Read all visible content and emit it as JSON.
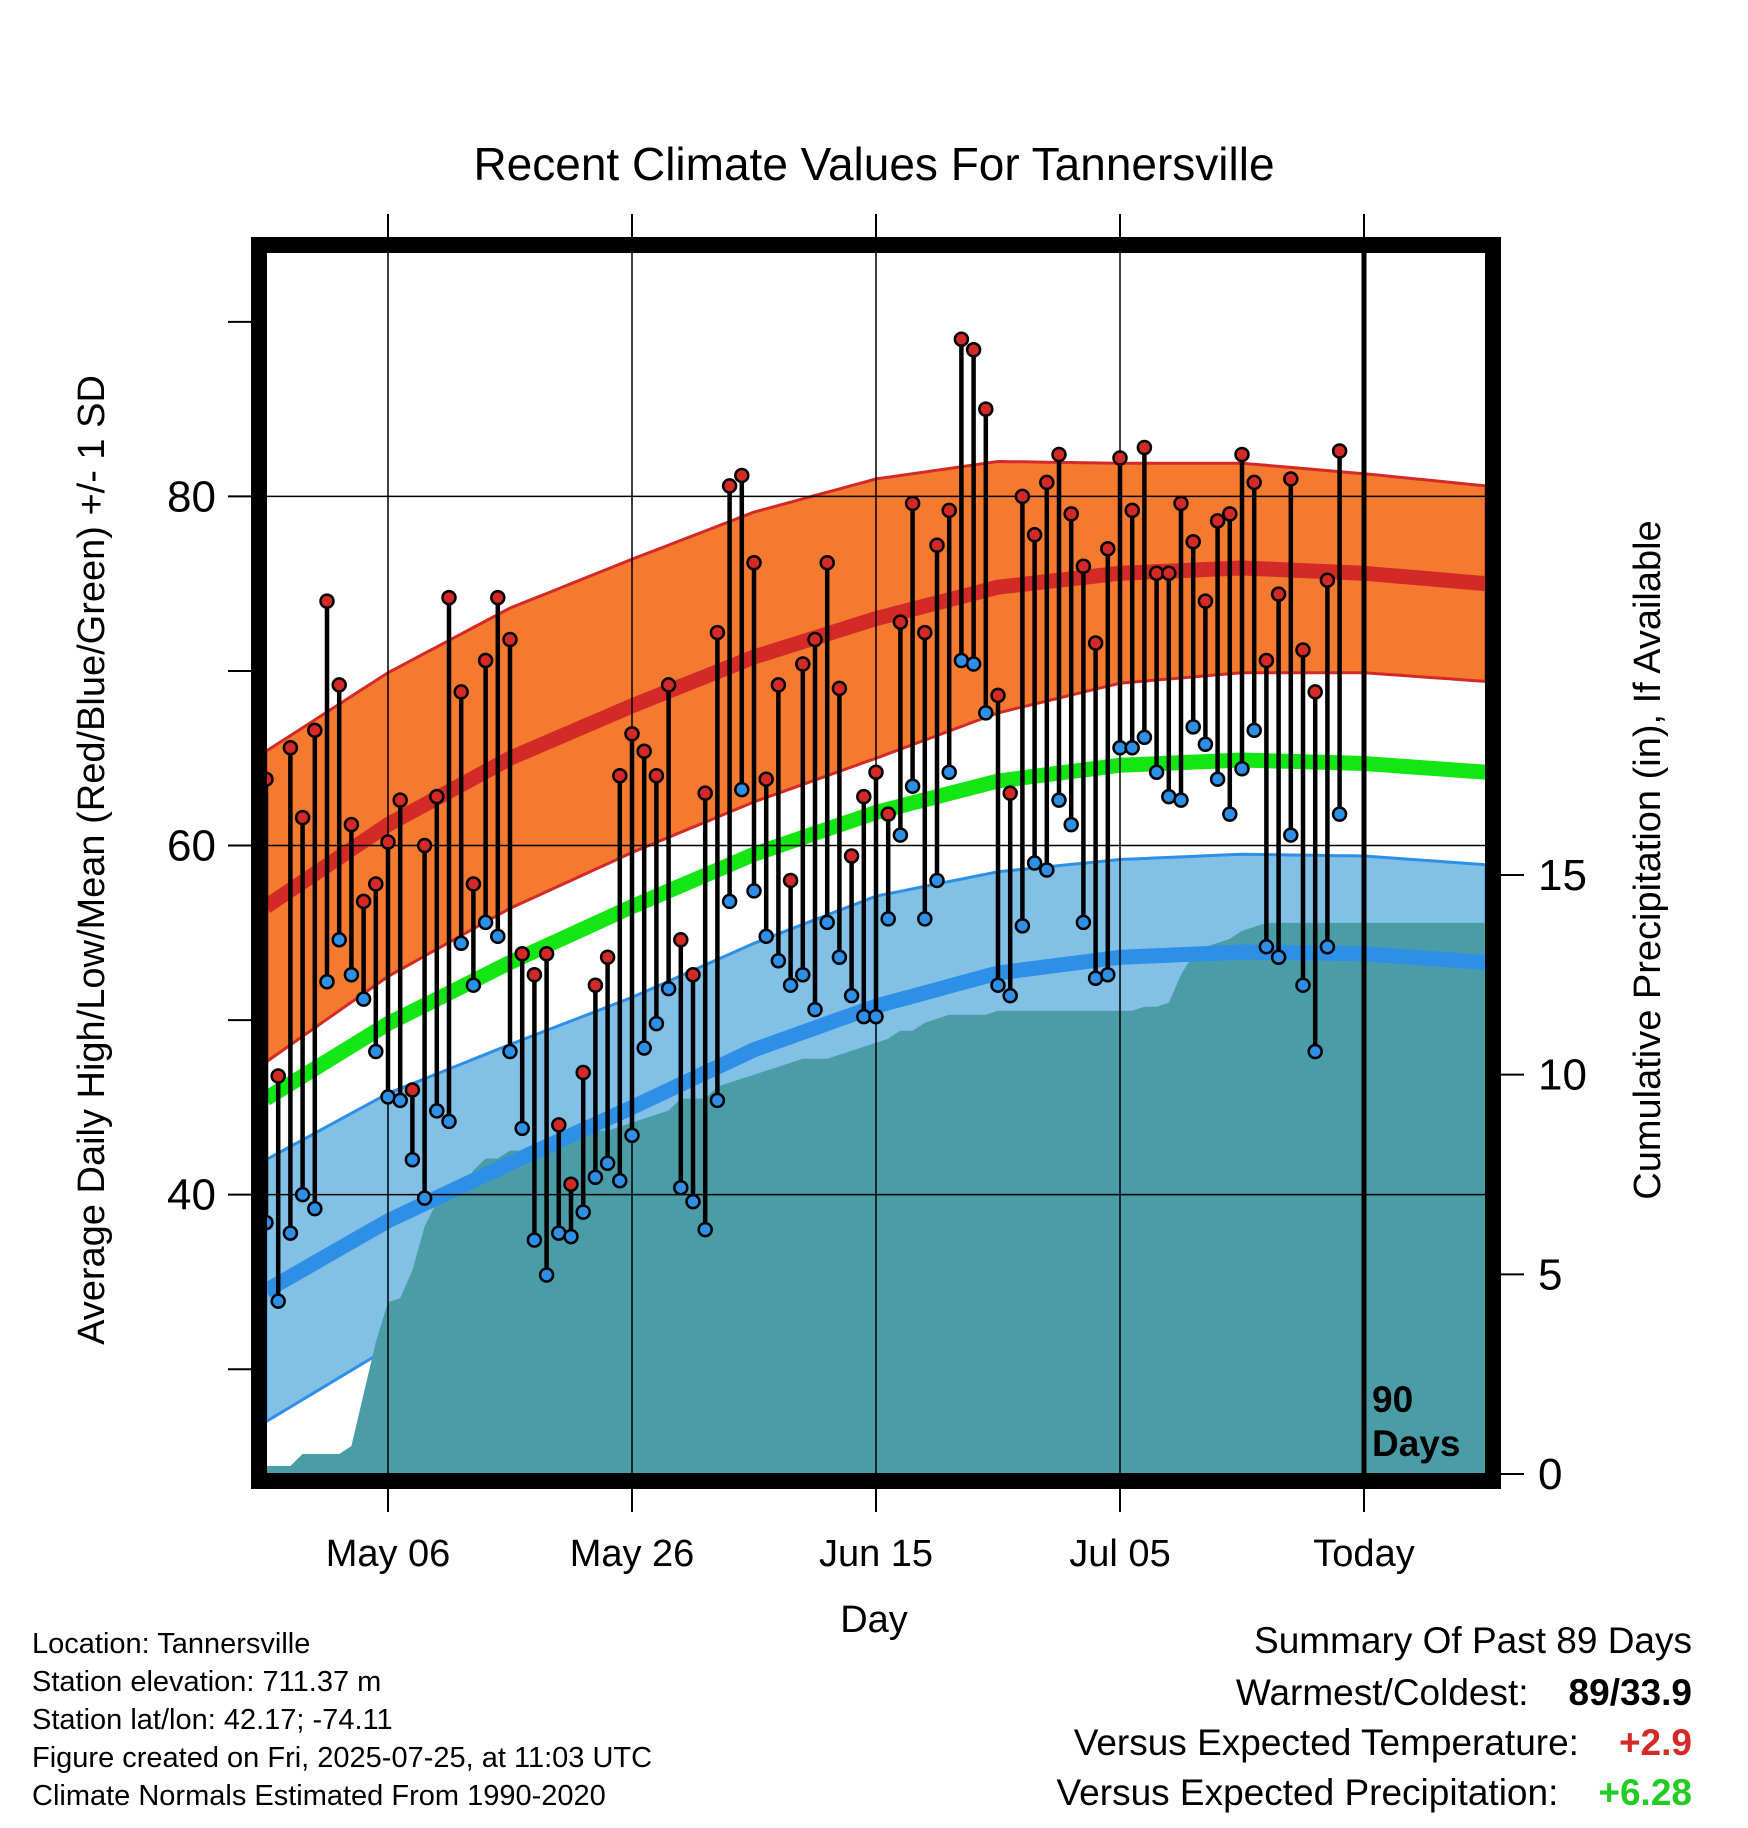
{
  "chart_data": {
    "type": "line",
    "title": "Recent Climate Values For Tannersville",
    "xlabel": "Day",
    "ylabel_left": "Average Daily High/Low/Mean (Red/Blue/Green) +/- 1 SD",
    "ylabel_right": "Cumulative Precipitation (in), If Available",
    "ylim_left": [
      24,
      94
    ],
    "ylim_right": [
      0,
      30.6
    ],
    "x_day_range": [
      0,
      100
    ],
    "x_ticks": [
      {
        "day": 10,
        "label": "May 06"
      },
      {
        "day": 30,
        "label": "May 26"
      },
      {
        "day": 50,
        "label": "Jun 15"
      },
      {
        "day": 70,
        "label": "Jul 05"
      },
      {
        "day": 90,
        "label": "Today"
      }
    ],
    "y_ticks_left": [
      40,
      60,
      80
    ],
    "y_ticks_right": [
      0,
      5,
      10,
      15
    ],
    "today_marker_label": [
      "90",
      "Days"
    ],
    "normals": {
      "days": [
        0,
        10,
        20,
        30,
        40,
        50,
        60,
        70,
        80,
        90,
        100
      ],
      "high_mean": [
        56.5,
        61.2,
        65.0,
        68.0,
        70.8,
        73.0,
        74.8,
        75.6,
        75.9,
        75.6,
        75.0
      ],
      "high_sd": [
        8.9,
        8.7,
        8.6,
        8.4,
        8.3,
        8.0,
        7.2,
        6.3,
        6.0,
        5.7,
        5.6
      ],
      "low_mean": [
        34.5,
        38.5,
        41.8,
        45.0,
        48.3,
        50.8,
        52.7,
        53.6,
        53.9,
        53.8,
        53.3
      ],
      "low_sd": [
        7.5,
        7.3,
        6.8,
        6.3,
        6.1,
        6.3,
        5.8,
        5.6,
        5.6,
        5.6,
        5.6
      ],
      "mean": [
        45.5,
        49.8,
        53.3,
        56.5,
        59.5,
        61.9,
        63.7,
        64.6,
        64.9,
        64.7,
        64.2
      ]
    },
    "series": [
      {
        "name": "High",
        "color": "#d42a27",
        "values": [
          63.8,
          46.8,
          65.6,
          61.6,
          66.6,
          74.0,
          69.2,
          61.2,
          56.8,
          57.8,
          60.2,
          62.6,
          46.0,
          60.0,
          62.8,
          74.2,
          68.8,
          57.8,
          70.6,
          74.2,
          71.8,
          53.8,
          52.6,
          53.8,
          44.0,
          40.6,
          47.0,
          52.0,
          53.6,
          64.0,
          66.4,
          65.4,
          64.0,
          69.2,
          54.6,
          52.6,
          63.0,
          72.2,
          80.6,
          81.2,
          76.2,
          63.8,
          69.2,
          58.0,
          70.4,
          71.8,
          76.2,
          69.0,
          59.4,
          62.8,
          64.2,
          61.8,
          72.8,
          79.6,
          72.2,
          77.2,
          79.2,
          89.0,
          88.4,
          85.0,
          68.6,
          63.0,
          80.0,
          77.8,
          80.8,
          82.4,
          79.0,
          76.0,
          71.6,
          77.0,
          82.2,
          79.2,
          82.8,
          75.6,
          75.6,
          79.6,
          77.4,
          74.0,
          78.6,
          79.0,
          82.4,
          80.8,
          70.6,
          74.4,
          81.0,
          71.2,
          68.8,
          75.2,
          82.6
        ]
      },
      {
        "name": "Low",
        "color": "#2e8fe6",
        "values": [
          38.4,
          33.9,
          37.8,
          40.0,
          39.2,
          52.2,
          54.6,
          52.6,
          51.2,
          48.2,
          45.6,
          45.4,
          42.0,
          39.8,
          44.8,
          44.2,
          54.4,
          52.0,
          55.6,
          54.8,
          48.2,
          43.8,
          37.4,
          35.4,
          37.8,
          37.6,
          39.0,
          41.0,
          41.8,
          40.8,
          43.4,
          48.4,
          49.8,
          51.8,
          40.4,
          39.6,
          38.0,
          45.4,
          56.8,
          63.2,
          57.4,
          54.8,
          53.4,
          52.0,
          52.6,
          50.6,
          55.6,
          53.6,
          51.4,
          50.2,
          50.2,
          55.8,
          60.6,
          63.4,
          55.8,
          58.0,
          64.2,
          70.6,
          70.4,
          67.6,
          52.0,
          51.4,
          55.4,
          59.0,
          58.6,
          62.6,
          61.2,
          55.6,
          52.4,
          52.6,
          65.6,
          65.6,
          66.2,
          64.2,
          62.8,
          62.6,
          66.8,
          65.8,
          63.8,
          61.8,
          64.4,
          66.6,
          54.2,
          53.6,
          60.6,
          52.0,
          48.2,
          54.2,
          61.8
        ]
      },
      {
        "name": "Precipitation",
        "color": "#4a9ca6",
        "values": [
          0.2,
          0.2,
          0.2,
          0.5,
          0.5,
          0.5,
          0.5,
          0.7,
          2.0,
          3.3,
          4.3,
          4.4,
          5.1,
          6.2,
          6.8,
          7.1,
          7.1,
          7.6,
          7.9,
          7.9,
          8.1,
          8.1,
          8.2,
          8.3,
          8.3,
          8.4,
          8.6,
          8.6,
          8.6,
          8.7,
          8.8,
          8.9,
          9.0,
          9.1,
          9.4,
          9.4,
          9.4,
          9.7,
          9.8,
          9.9,
          10.0,
          10.1,
          10.2,
          10.3,
          10.4,
          10.4,
          10.4,
          10.5,
          10.6,
          10.7,
          10.8,
          10.9,
          11.1,
          11.1,
          11.3,
          11.4,
          11.5,
          11.5,
          11.5,
          11.5,
          11.6,
          11.6,
          11.6,
          11.6,
          11.6,
          11.6,
          11.6,
          11.6,
          11.6,
          11.6,
          11.6,
          11.6,
          11.7,
          11.7,
          11.8,
          12.5,
          13.0,
          13.2,
          13.3,
          13.4,
          13.6,
          13.7,
          13.8,
          13.8,
          13.8,
          13.8,
          13.8,
          13.8,
          13.8,
          13.8,
          13.8,
          13.8,
          13.8,
          13.8,
          13.8,
          13.8,
          13.8,
          13.8,
          13.8,
          13.8,
          13.8
        ]
      }
    ]
  },
  "info": {
    "location": "Location: Tannersville",
    "elevation": "Station elevation: 711.37 m",
    "latlon": "Station lat/lon: 42.17; -74.11",
    "created": "Figure created on Fri, 2025-07-25, at 11:03 UTC",
    "normals": "Climate Normals Estimated From 1990-2020"
  },
  "summary": {
    "title": "Summary Of Past 89 Days",
    "warm_label": "Warmest/Coldest:",
    "warm_value": "89/33.9",
    "temp_label": "Versus Expected Temperature:",
    "temp_value": "+2.9",
    "temp_color": "#d42a27",
    "precip_label": "Versus Expected Precipitation:",
    "precip_value": "+6.28",
    "precip_color": "#22cc22"
  },
  "colors": {
    "high_band": "#f47a30",
    "high_line": "#d42a27",
    "low_band": "#82c0e6",
    "low_line": "#2e8fe6",
    "mean_line": "#14e614",
    "precip": "#4a9ca6"
  }
}
